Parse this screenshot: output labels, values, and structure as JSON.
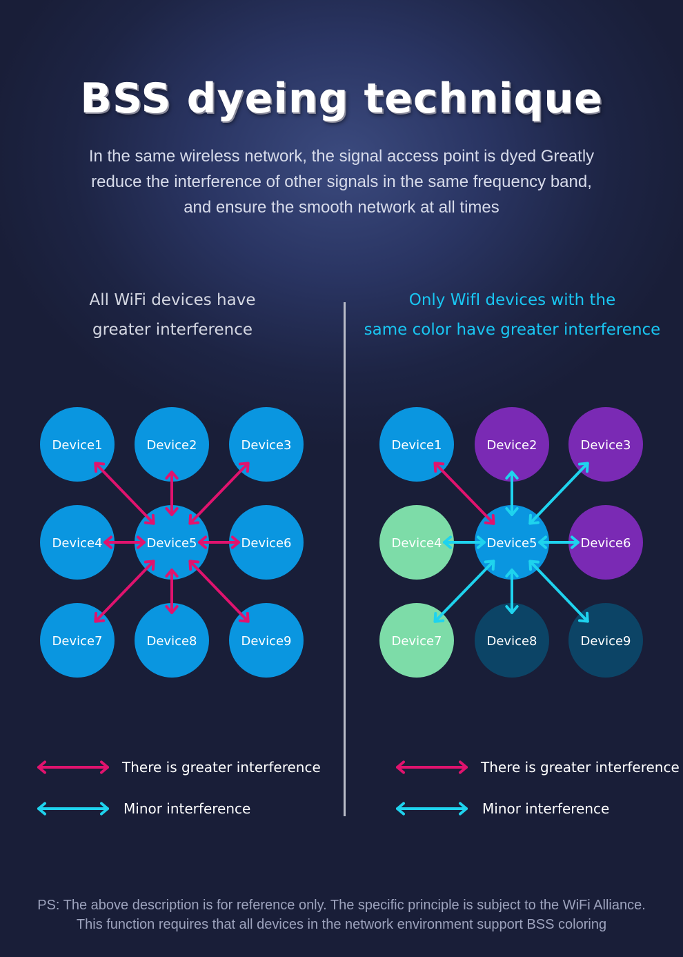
{
  "title": "BSS dyeing technique",
  "intro": {
    "line1": "In the same wireless network, the signal access point is dyed Greatly",
    "line2": "reduce the interference of other signals in the same frequency band,",
    "line3": "and ensure the smooth network at all times"
  },
  "left_panel": {
    "heading_line1": "All WiFi devices have",
    "heading_line2": "greater interference",
    "devices": [
      "Device1",
      "Device2",
      "Device3",
      "Device4",
      "Device5",
      "Device6",
      "Device7",
      "Device8",
      "Device9"
    ],
    "node_colors": [
      "#0a96e0",
      "#0a96e0",
      "#0a96e0",
      "#0a96e0",
      "#0a96e0",
      "#0a96e0",
      "#0a96e0",
      "#0a96e0",
      "#0a96e0"
    ],
    "links": [
      {
        "from": "Device5",
        "to": "Device1",
        "type": "greater"
      },
      {
        "from": "Device5",
        "to": "Device2",
        "type": "greater"
      },
      {
        "from": "Device5",
        "to": "Device3",
        "type": "greater"
      },
      {
        "from": "Device5",
        "to": "Device4",
        "type": "greater"
      },
      {
        "from": "Device5",
        "to": "Device6",
        "type": "greater"
      },
      {
        "from": "Device5",
        "to": "Device7",
        "type": "greater"
      },
      {
        "from": "Device5",
        "to": "Device8",
        "type": "greater"
      },
      {
        "from": "Device5",
        "to": "Device9",
        "type": "greater"
      }
    ]
  },
  "right_panel": {
    "heading_line1": "Only WifI devices with the",
    "heading_line2": "same color have greater interference",
    "devices": [
      "Device1",
      "Device2",
      "Device3",
      "Device4",
      "Device5",
      "Device6",
      "Device7",
      "Device8",
      "Device9"
    ],
    "node_colors": [
      "#0a96e0",
      "#7a2ab4",
      "#7a2ab4",
      "#7ddca8",
      "#0a96e0",
      "#7a2ab4",
      "#7ddca8",
      "#0c4466",
      "#0c4466"
    ],
    "links": [
      {
        "from": "Device5",
        "to": "Device1",
        "type": "greater"
      },
      {
        "from": "Device5",
        "to": "Device2",
        "type": "minor"
      },
      {
        "from": "Device5",
        "to": "Device3",
        "type": "minor"
      },
      {
        "from": "Device5",
        "to": "Device4",
        "type": "minor"
      },
      {
        "from": "Device5",
        "to": "Device6",
        "type": "minor"
      },
      {
        "from": "Device5",
        "to": "Device7",
        "type": "minor"
      },
      {
        "from": "Device5",
        "to": "Device8",
        "type": "minor"
      },
      {
        "from": "Device5",
        "to": "Device9",
        "type": "minor"
      }
    ]
  },
  "legend": {
    "greater_label": "There is greater interference",
    "minor_label": "Minor interference",
    "greater_color": "#e0136e",
    "minor_color": "#1fd3ee",
    "greater_icon": "double-arrow-pink",
    "minor_icon": "double-arrow-cyan"
  },
  "footnote": {
    "line1": "PS: The above description is for reference only. The specific principle is subject to the WiFi Alliance.",
    "line2": "This function requires that all devices in the network environment support BSS coloring"
  }
}
